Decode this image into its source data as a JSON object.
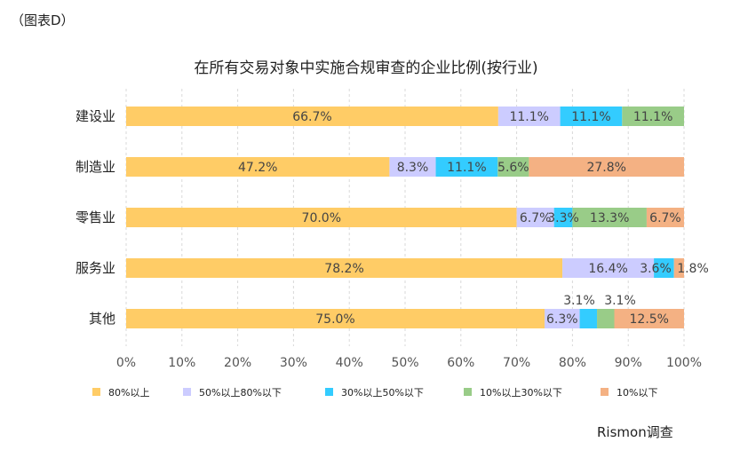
{
  "figure_label": "（图表D）",
  "source": "Rismon调查",
  "chart_data": {
    "type": "bar",
    "orientation": "horizontal",
    "stacked": true,
    "title": "在所有交易对象中实施合规审查的企业比例(按行业)",
    "categories": [
      "建设业",
      "制造业",
      "零售业",
      "服务业",
      "其他"
    ],
    "series": [
      {
        "name": "80%以上",
        "color": "#FFCC66",
        "values": [
          66.7,
          47.2,
          70.0,
          78.2,
          75.0
        ],
        "labels": [
          "66.7%",
          "47.2%",
          "70.0%",
          "78.2%",
          "75.0%"
        ]
      },
      {
        "name": "50%以上80%以下",
        "color": "#CCCCFF",
        "values": [
          11.1,
          8.3,
          6.7,
          16.4,
          6.3
        ],
        "labels": [
          "11.1%",
          "8.3%",
          "6.7%",
          "16.4%",
          "6.3%"
        ]
      },
      {
        "name": "30%以上50%以下",
        "color": "#33CCFF",
        "values": [
          11.1,
          11.1,
          3.3,
          3.6,
          3.1
        ],
        "labels": [
          "11.1%",
          "11.1%",
          "3.3%",
          "3.6%",
          "3.1%"
        ]
      },
      {
        "name": "10%以上30%以下",
        "color": "#99CC88",
        "values": [
          11.1,
          5.6,
          13.3,
          0,
          3.1
        ],
        "labels": [
          "11.1%",
          "5.6%",
          "13.3%",
          "",
          "3.1%"
        ]
      },
      {
        "name": "10%以下",
        "color": "#F4B183",
        "values": [
          0,
          27.8,
          6.7,
          1.8,
          12.5
        ],
        "labels": [
          "",
          "27.8%",
          "6.7%",
          "1.8%",
          "12.5%"
        ]
      }
    ],
    "xlim": [
      0,
      100
    ],
    "xticks": [
      "0%",
      "10%",
      "20%",
      "30%",
      "40%",
      "50%",
      "60%",
      "70%",
      "80%",
      "90%",
      "100%"
    ],
    "grid": "vertical dashed",
    "legend": "bottom"
  }
}
